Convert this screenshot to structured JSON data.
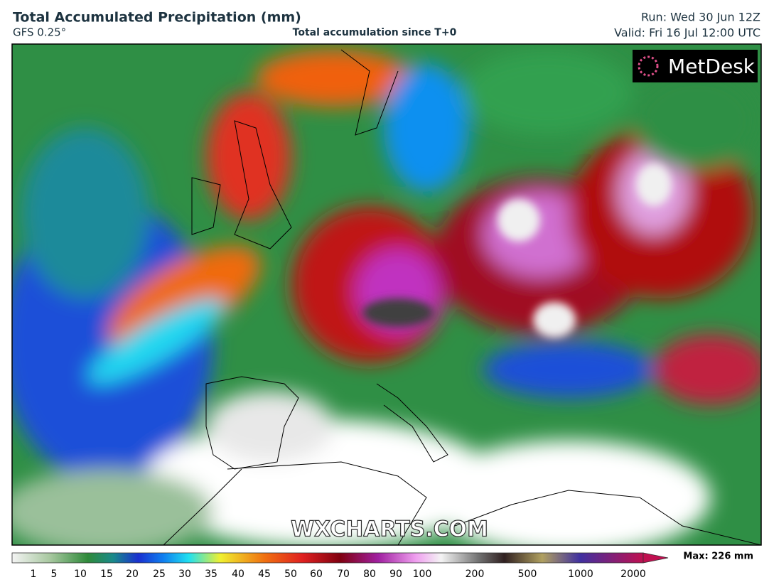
{
  "header": {
    "title": "Total Accumulated Precipitation (mm)",
    "model": "GFS 0.25°",
    "subtitle": "Total accumulation since T+0",
    "run": "Run: Wed 30 Jun 12Z",
    "valid": "Valid: Fri 16 Jul 12:00 UTC"
  },
  "map": {
    "logo": "MetDesk",
    "watermark": "WXCHARTS.COM"
  },
  "colorbar": {
    "labels": [
      1,
      5,
      10,
      15,
      20,
      25,
      30,
      35,
      40,
      45,
      50,
      60,
      70,
      80,
      90,
      100,
      200,
      500,
      1000,
      2000
    ],
    "max_label": "Max: 226 mm"
  }
}
